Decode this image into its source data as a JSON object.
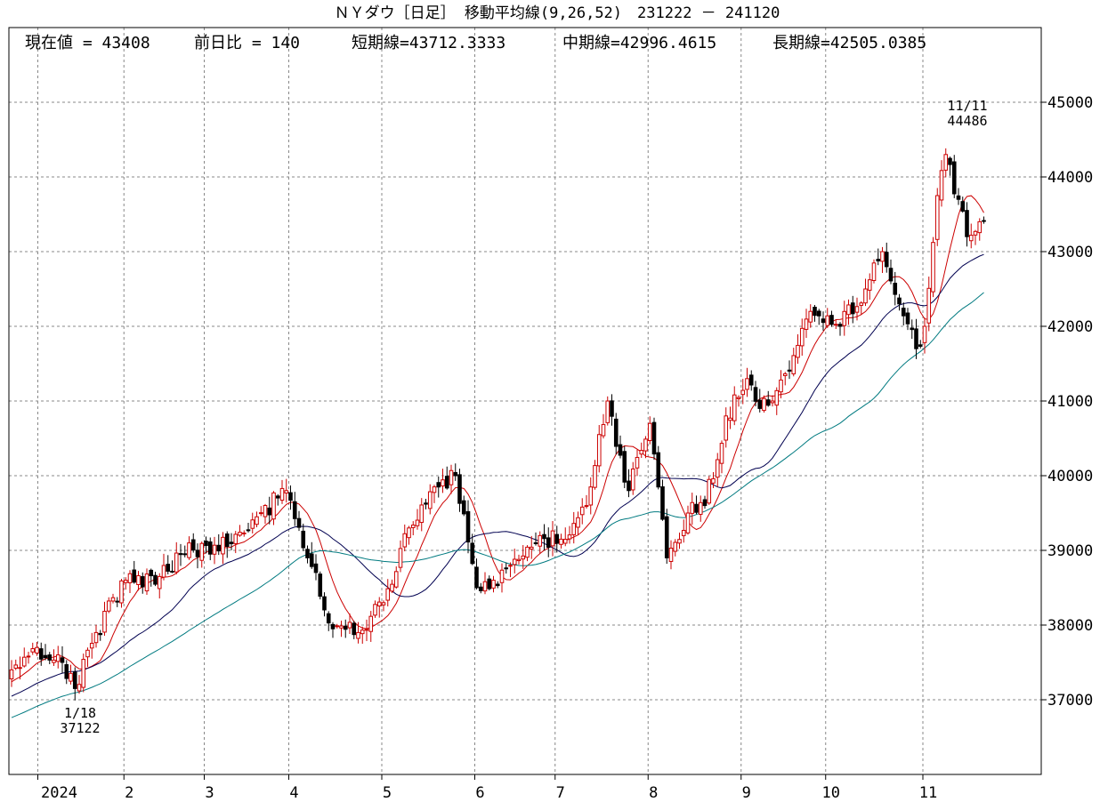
{
  "chart_data": {
    "type": "candlestick",
    "title": "ＮＹダウ［日足］ 移動平均線(9,26,52)　231222 － 241120",
    "info": {
      "current": "現在値 = 43408",
      "change": "前日比 = 140",
      "short_ma": "短期線=43712.3333",
      "mid_ma": "中期線=42996.4615",
      "long_ma": "長期線=42505.0385"
    },
    "ylim": [
      36000,
      46000
    ],
    "y_ticks": [
      "37000",
      "38000",
      "39000",
      "40000",
      "41000",
      "42000",
      "43000",
      "44000",
      "45000"
    ],
    "x_ticks": [
      "2024",
      "2",
      "3",
      "4",
      "5",
      "6",
      "7",
      "8",
      "9",
      "10",
      "11"
    ],
    "grid": true,
    "annotations": [
      {
        "date": "1/18",
        "value": "37122"
      },
      {
        "date": "11/11",
        "value": "44486"
      }
    ],
    "months": [
      {
        "label": "2024",
        "start_index": 6,
        "days": 21
      },
      {
        "label": "2",
        "start_index": 27,
        "days": 19
      },
      {
        "label": "3",
        "start_index": 46,
        "days": 20
      },
      {
        "label": "4",
        "start_index": 66,
        "days": 22
      },
      {
        "label": "5",
        "start_index": 88,
        "days": 22
      },
      {
        "label": "6",
        "start_index": 110,
        "days": 19
      },
      {
        "label": "7",
        "start_index": 129,
        "days": 22
      },
      {
        "label": "8",
        "start_index": 151,
        "days": 22
      },
      {
        "label": "9",
        "start_index": 173,
        "days": 20
      },
      {
        "label": "10",
        "start_index": 193,
        "days": 23
      },
      {
        "label": "11",
        "start_index": 216,
        "days": 14
      }
    ],
    "close_anchors": [
      [
        0,
        37400
      ],
      [
        6,
        37700
      ],
      [
        12,
        37500
      ],
      [
        15,
        37150
      ],
      [
        20,
        37900
      ],
      [
        27,
        38600
      ],
      [
        35,
        38650
      ],
      [
        42,
        39100
      ],
      [
        47,
        38950
      ],
      [
        58,
        39450
      ],
      [
        65,
        39800
      ],
      [
        70,
        38900
      ],
      [
        76,
        37950
      ],
      [
        82,
        37900
      ],
      [
        88,
        38300
      ],
      [
        94,
        39300
      ],
      [
        100,
        39850
      ],
      [
        105,
        40000
      ],
      [
        110,
        38500
      ],
      [
        114,
        38600
      ],
      [
        118,
        38800
      ],
      [
        124,
        39100
      ],
      [
        130,
        39150
      ],
      [
        136,
        39600
      ],
      [
        141,
        41000
      ],
      [
        146,
        39800
      ],
      [
        151,
        40700
      ],
      [
        155,
        38900
      ],
      [
        160,
        39500
      ],
      [
        164,
        39600
      ],
      [
        169,
        40800
      ],
      [
        174,
        41300
      ],
      [
        177,
        40900
      ],
      [
        180,
        41000
      ],
      [
        184,
        41400
      ],
      [
        189,
        42200
      ],
      [
        196,
        42000
      ],
      [
        202,
        42500
      ],
      [
        206,
        43000
      ],
      [
        210,
        42300
      ],
      [
        214,
        41700
      ],
      [
        216,
        42000
      ],
      [
        219,
        43750
      ],
      [
        221,
        44300
      ],
      [
        224,
        43700
      ],
      [
        226,
        43200
      ],
      [
        230,
        43408
      ]
    ],
    "ma_series": [
      {
        "period": 9,
        "color": "#cc0000"
      },
      {
        "period": 26,
        "color": "#000050"
      },
      {
        "period": 52,
        "color": "#007a80"
      }
    ],
    "colors": {
      "up": "#cc0000",
      "down": "#000000",
      "grid": "#888888",
      "frame": "#000000"
    }
  }
}
